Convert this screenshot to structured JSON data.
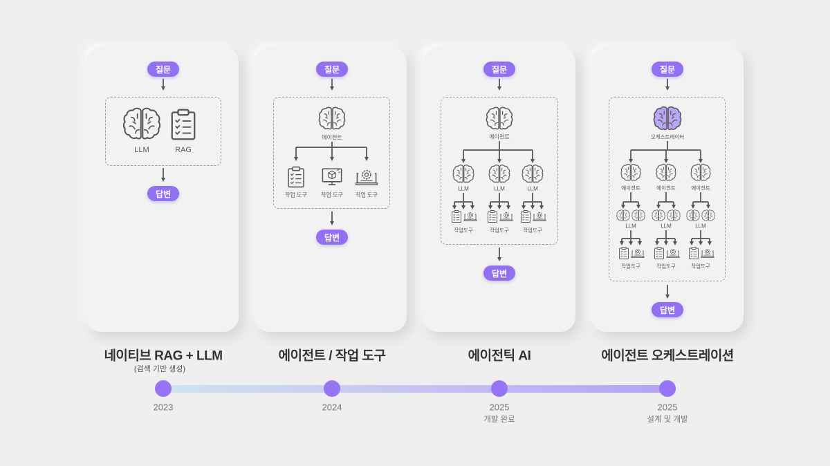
{
  "colors": {
    "accent": "#9170f2",
    "timeline_start": "#cfe3ef",
    "timeline_end": "#b5a2f4",
    "orchestrator_brain": "#b9a6f5"
  },
  "labels": {
    "question": "질문",
    "answer": "답변"
  },
  "stages": [
    {
      "title": "네이티브 RAG + LLM",
      "subtitle": "(검색 기반 생성)",
      "year": "2023",
      "year_note": "",
      "diagram": {
        "llm": "LLM",
        "rag": "RAG"
      }
    },
    {
      "title": "에이전트 / 작업 도구",
      "year": "2024",
      "year_note": "",
      "diagram": {
        "agent": "에이전트",
        "tools": [
          "작업 도구",
          "작업 도구",
          "작업 도구"
        ]
      }
    },
    {
      "title": "에이전틱 AI",
      "year": "2025",
      "year_note": "개발 완료",
      "diagram": {
        "agent": "에이전트",
        "llms": [
          "LLM",
          "LLM",
          "LLM"
        ],
        "tools": [
          "작업도구",
          "작업도구",
          "작업도구"
        ]
      }
    },
    {
      "title": "에이전트 오케스트레이션",
      "year": "2025",
      "year_note": "설계 및 개발",
      "diagram": {
        "orchestrator": "오케스트레이터",
        "agents": [
          "에이전트",
          "에이전트",
          "에이전트"
        ],
        "llms": [
          "LLM",
          "LLM",
          "LLM"
        ],
        "tools": [
          "작업도구",
          "작업도구",
          "작업도구"
        ]
      }
    }
  ]
}
